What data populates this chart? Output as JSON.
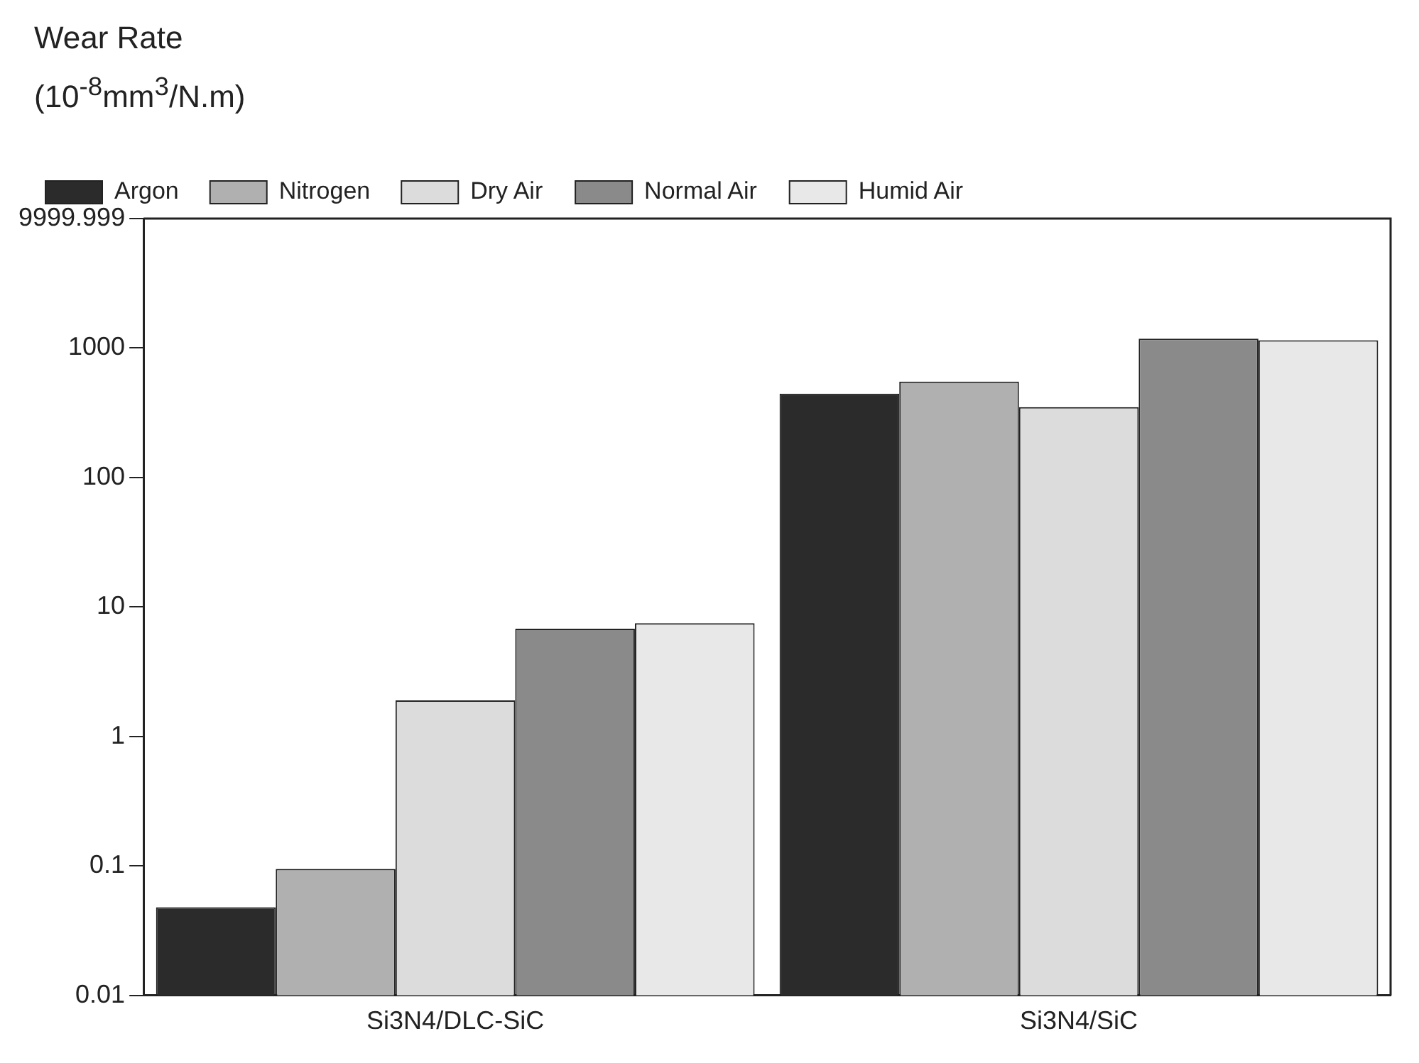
{
  "chart_data": {
    "type": "bar",
    "ylabel": "Wear Rate\n(10$^{-8}$mm$^{3}$/N.m)",
    "categories": [
      "Si3N4/DLC-SiC",
      "Si3N4/SiC"
    ],
    "series": [
      {
        "name": "Argon",
        "color": "#2b2b2b",
        "values": [
          0.048,
          445
        ]
      },
      {
        "name": "Nitrogen",
        "color": "#b0b0b0",
        "values": [
          0.095,
          550
        ]
      },
      {
        "name": "Dry Air",
        "color": "#dcdcdc",
        "values": [
          1.9,
          350
        ]
      },
      {
        "name": "Normal Air",
        "color": "#8a8a8a",
        "values": [
          6.8,
          1180
        ]
      },
      {
        "name": "Humid Air",
        "color": "#e8e8e8",
        "values": [
          7.5,
          1150
        ]
      }
    ],
    "log": true,
    "ylim": [
      0.01,
      9999.999
    ],
    "yticks": [
      0.01,
      0.1,
      1,
      10,
      100,
      1000,
      9999.999
    ],
    "grid": false,
    "legend": "top"
  }
}
